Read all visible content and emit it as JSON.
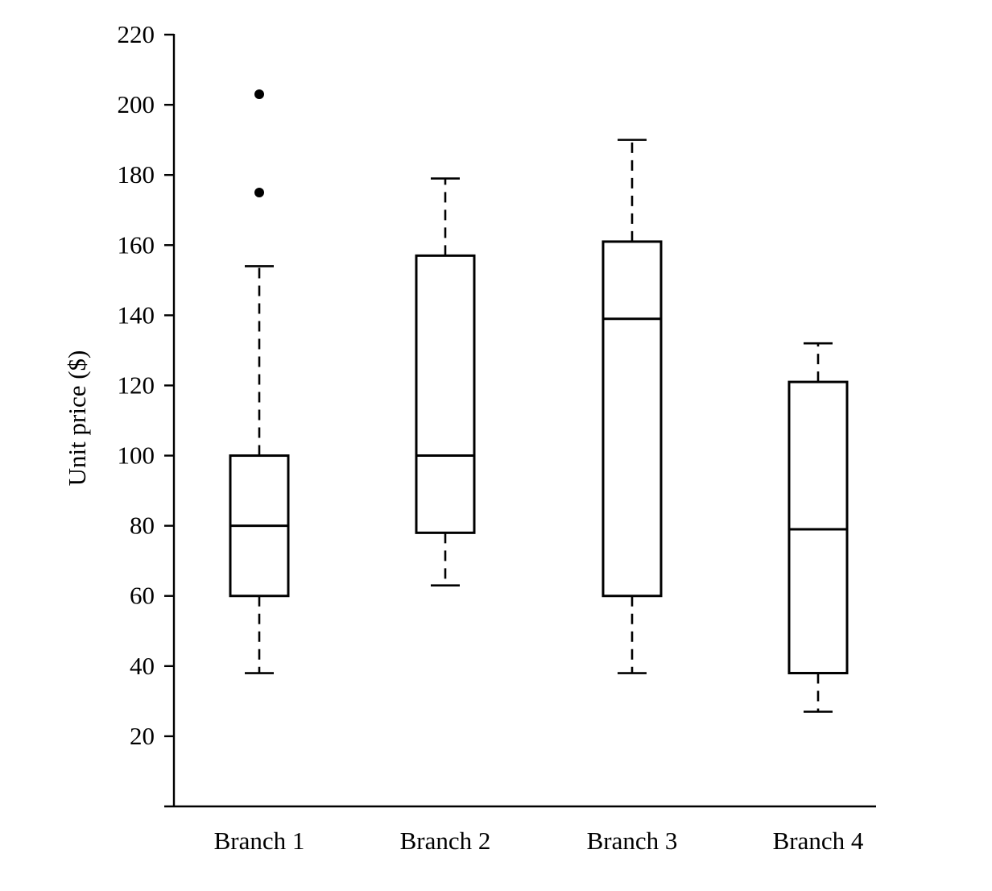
{
  "chart_data": {
    "type": "boxplot",
    "title": "",
    "xlabel": "",
    "ylabel": "Unit price ($)",
    "ylim": [
      0,
      220
    ],
    "yticks": [
      20,
      40,
      60,
      80,
      100,
      120,
      140,
      160,
      180,
      200,
      220
    ],
    "categories": [
      "Branch 1",
      "Branch 2",
      "Branch 3",
      "Branch 4"
    ],
    "boxes": [
      {
        "category": "Branch 1",
        "whisker_low": 38,
        "q1": 60,
        "median": 80,
        "q3": 100,
        "whisker_high": 154,
        "outliers": [
          175,
          203
        ]
      },
      {
        "category": "Branch 2",
        "whisker_low": 63,
        "q1": 78,
        "median": 100,
        "q3": 157,
        "whisker_high": 179,
        "outliers": []
      },
      {
        "category": "Branch 3",
        "whisker_low": 38,
        "q1": 60,
        "median": 139,
        "q3": 161,
        "whisker_high": 190,
        "outliers": []
      },
      {
        "category": "Branch 4",
        "whisker_low": 27,
        "q1": 38,
        "median": 79,
        "q3": 121,
        "whisker_high": 132,
        "outliers": []
      }
    ],
    "grid": false,
    "legend": "none"
  }
}
